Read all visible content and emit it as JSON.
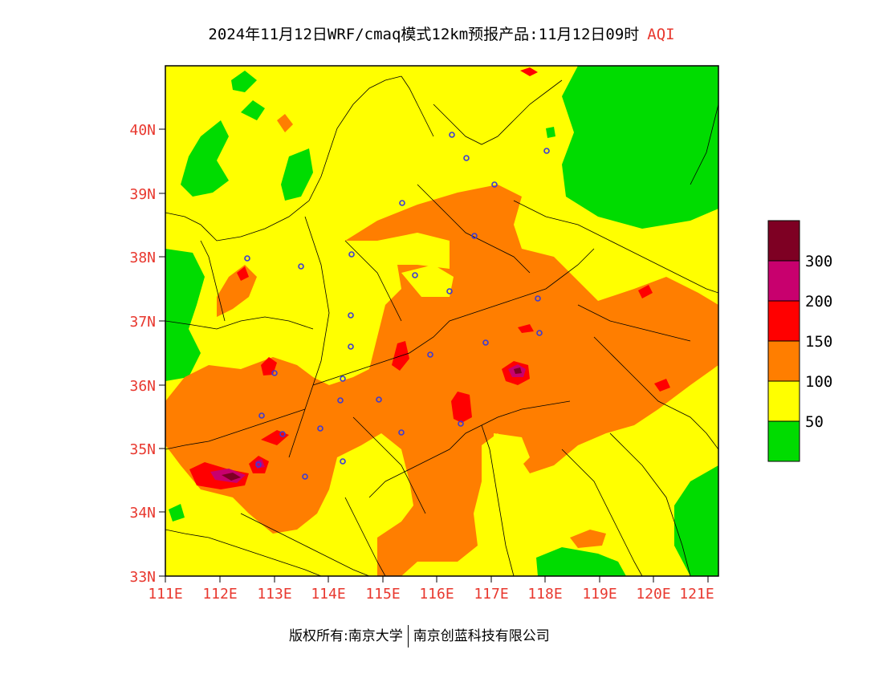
{
  "title": {
    "text": "2024年11月12日WRF/cmaq模式12km预报产品:11月12日09时",
    "variable": "AQI"
  },
  "axes": {
    "x_ticks": [
      "111E",
      "112E",
      "113E",
      "114E",
      "115E",
      "116E",
      "117E",
      "118E",
      "119E",
      "120E",
      "121E"
    ],
    "y_ticks": [
      "33N",
      "34N",
      "35N",
      "36N",
      "37N",
      "38N",
      "39N",
      "40N"
    ],
    "tick_color": "#e8382f"
  },
  "legend": {
    "labels": [
      "50",
      "100",
      "150",
      "200",
      "300"
    ],
    "colors": [
      "#00dc00",
      "#ffff00",
      "#ff7e00",
      "#ff0000",
      "#c8006e",
      "#7e0023"
    ]
  },
  "footer": {
    "copyright": "版权所有:南京大学",
    "company": "南京创蓝科技有限公司"
  }
}
